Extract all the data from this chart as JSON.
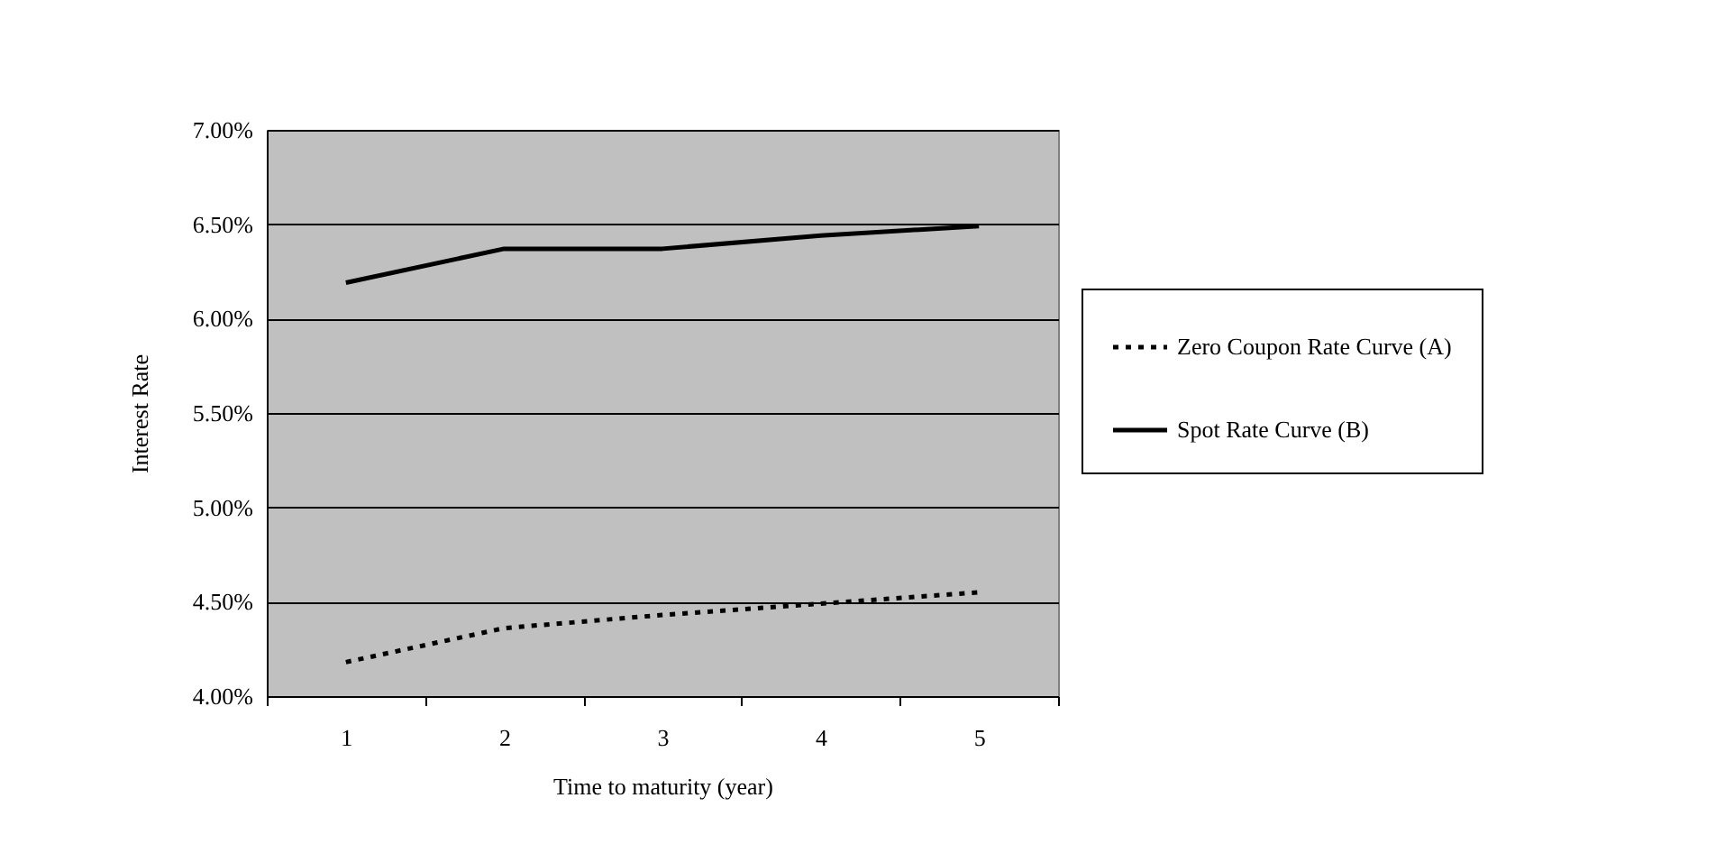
{
  "chart_data": {
    "type": "line",
    "xlabel": "Time to maturity (year)",
    "ylabel": "Interest Rate",
    "categories": [
      "1",
      "2",
      "3",
      "4",
      "5"
    ],
    "series": [
      {
        "name": "Zero Coupon Rate Curve (A)",
        "color": "#000000",
        "line_style": "dotted",
        "values": [
          4.18,
          4.36,
          4.43,
          4.49,
          4.55
        ]
      },
      {
        "name": "Spot Rate Curve (B)",
        "color": "#000000",
        "line_style": "solid",
        "values": [
          6.19,
          6.37,
          6.37,
          6.44,
          6.49
        ]
      }
    ],
    "ylim": [
      4,
      7
    ],
    "yticks": [
      {
        "value": 4,
        "label": "4.00%"
      },
      {
        "value": 4.5,
        "label": "4.50%"
      },
      {
        "value": 5,
        "label": "5.00%"
      },
      {
        "value": 5.5,
        "label": "5.50%"
      },
      {
        "value": 6,
        "label": "6.00%"
      },
      {
        "value": 6.5,
        "label": "6.50%"
      },
      {
        "value": 7,
        "label": "7.00%"
      }
    ],
    "grid": "y",
    "legend": "right",
    "marker": "none"
  }
}
